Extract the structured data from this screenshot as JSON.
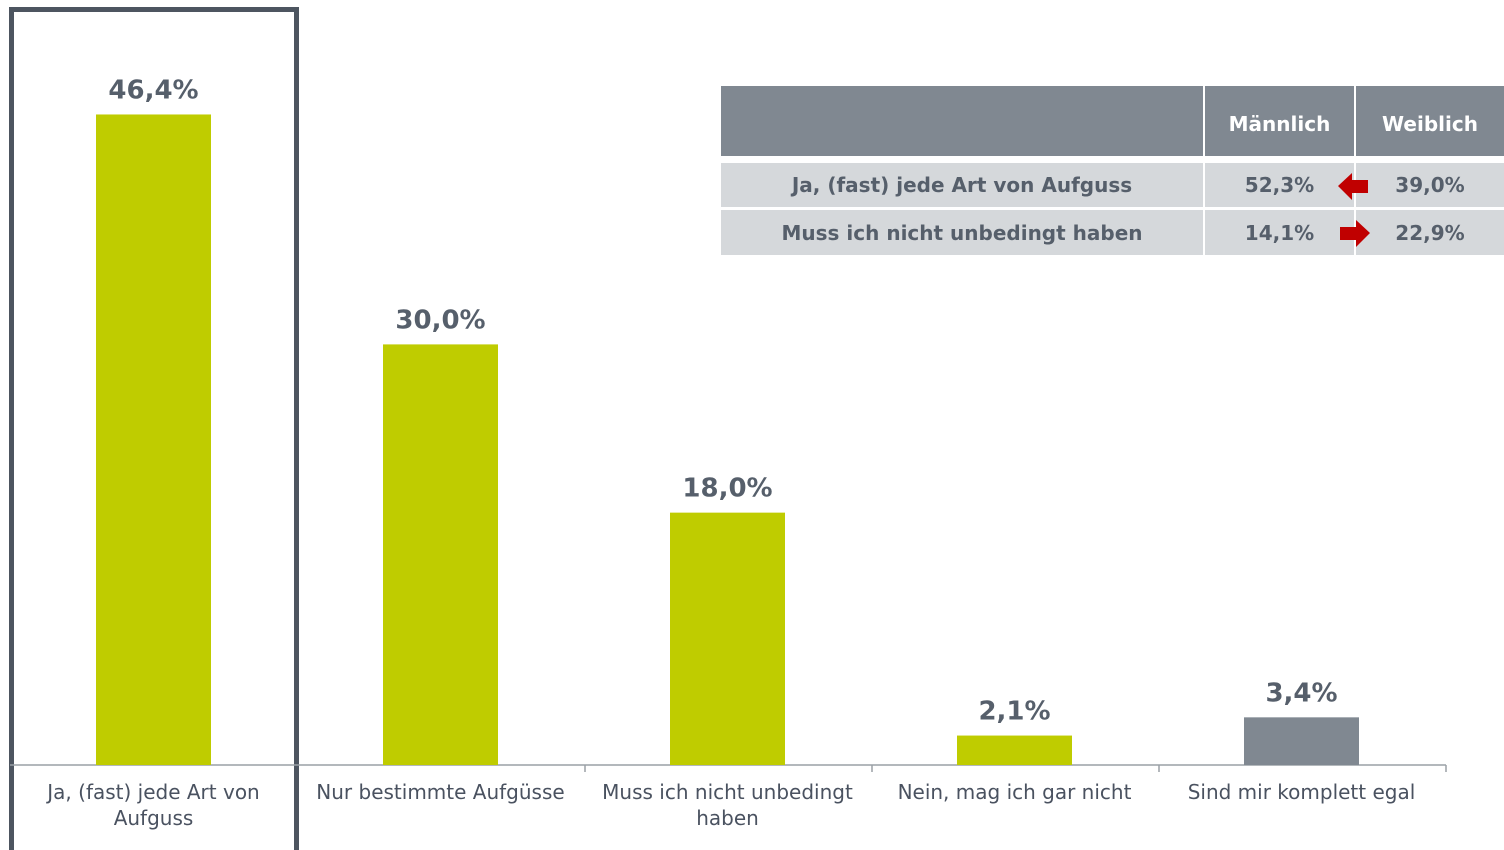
{
  "chart_data": {
    "type": "bar",
    "categories": [
      "Ja, (fast) jede Art von Aufguss",
      "Nur bestimmte Aufgüsse",
      "Muss ich nicht unbedingt haben",
      "Nein, mag ich gar nicht",
      "Sind mir komplett egal"
    ],
    "values": [
      46.4,
      30.0,
      18.0,
      2.1,
      3.4
    ],
    "value_labels": [
      "46,4%",
      "30,0%",
      "18,0%",
      "2,1%",
      "3,4%"
    ],
    "colors": [
      "#bfcc00",
      "#bfcc00",
      "#bfcc00",
      "#bfcc00",
      "#808891"
    ],
    "ylim": [
      0,
      50
    ]
  },
  "table": {
    "header": [
      "Männlich",
      "Weiblich"
    ],
    "rows": [
      [
        "Ja, (fast) jede Art von Aufguss",
        "52,3%",
        "39,0%"
      ],
      [
        "Muss ich nicht unbedingt haben",
        "14,1%",
        "22,9%"
      ]
    ]
  }
}
